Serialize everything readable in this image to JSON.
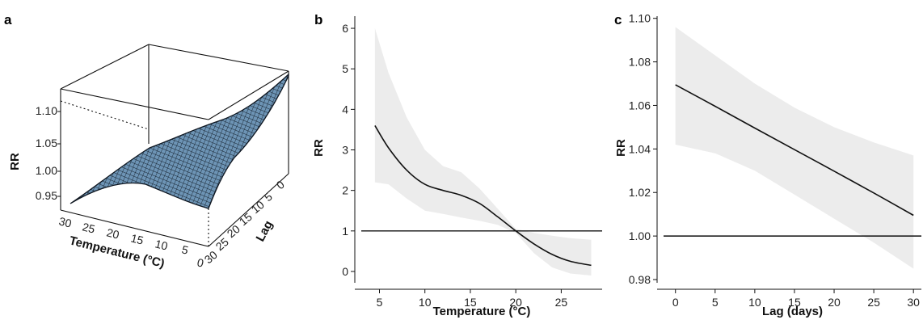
{
  "panels": {
    "a": {
      "label": "a"
    },
    "b": {
      "label": "b"
    },
    "c": {
      "label": "c"
    }
  },
  "chart_data": [
    {
      "panel": "a",
      "type": "surface3d",
      "xlabel": "Temperature (°C)",
      "ylabel": "Lag",
      "zlabel": "RR",
      "x_ticks": [
        "30",
        "25",
        "20",
        "15",
        "10",
        "5",
        "0"
      ],
      "y_ticks": [
        "0",
        "5",
        "10",
        "15",
        "20",
        "25",
        "30"
      ],
      "z_ticks": [
        "0.95",
        "1.00",
        "1.05",
        "1.10"
      ],
      "xlim": [
        0,
        30
      ],
      "ylim": [
        0,
        30
      ],
      "zlim": [
        0.93,
        1.12
      ],
      "surface_color": "#5f87a8",
      "corners": {
        "temp30_lag0": 0.94,
        "temp30_lag30": 0.95,
        "temp0_lag0": 1.11,
        "temp0_lag30": 1.0
      }
    },
    {
      "panel": "b",
      "type": "line",
      "xlabel": "Temperature (°C)",
      "ylabel": "RR",
      "xlim": [
        3,
        29.5
      ],
      "ylim": [
        -0.2,
        6.3
      ],
      "x_ticks": [
        5,
        10,
        15,
        20,
        25
      ],
      "y_ticks": [
        0,
        1,
        2,
        3,
        4,
        5,
        6
      ],
      "reference_line": 1,
      "series": [
        {
          "x": [
            4.5,
            6,
            8,
            10,
            12,
            14,
            16,
            18,
            20,
            22,
            24,
            26,
            28.3
          ],
          "y": [
            3.6,
            3.05,
            2.5,
            2.15,
            2.0,
            1.88,
            1.68,
            1.35,
            1.0,
            0.68,
            0.42,
            0.25,
            0.15
          ],
          "ci_upper": [
            6.0,
            4.9,
            3.8,
            3.0,
            2.6,
            2.45,
            2.05,
            1.55,
            1.05,
            0.95,
            0.88,
            0.82,
            0.78
          ],
          "ci_lower": [
            2.2,
            2.15,
            1.8,
            1.5,
            1.42,
            1.33,
            1.25,
            1.15,
            0.95,
            0.45,
            0.1,
            -0.05,
            -0.1
          ],
          "ci_color": "#ececec",
          "line_color": "#111111"
        }
      ]
    },
    {
      "panel": "c",
      "type": "line",
      "xlabel": "Lag (days)",
      "ylabel": "RR",
      "xlim": [
        -1.5,
        31
      ],
      "ylim": [
        0.98,
        1.101
      ],
      "x_ticks": [
        0,
        5,
        10,
        15,
        20,
        25,
        30
      ],
      "y_ticks": [
        "0.98",
        "1.00",
        "1.02",
        "1.04",
        "1.06",
        "1.08",
        "1.10"
      ],
      "reference_line": 1.0,
      "series": [
        {
          "x": [
            0,
            5,
            10,
            15,
            20,
            25,
            30
          ],
          "y": [
            1.0695,
            1.0596,
            1.0496,
            1.0397,
            1.0298,
            1.0198,
            1.0095
          ],
          "ci_upper": [
            1.096,
            1.083,
            1.07,
            1.059,
            1.05,
            1.043,
            1.037
          ],
          "ci_lower": [
            1.042,
            1.038,
            1.03,
            1.019,
            1.008,
            0.997,
            0.985
          ],
          "ci_color": "#ececec",
          "line_color": "#111111"
        }
      ]
    }
  ]
}
